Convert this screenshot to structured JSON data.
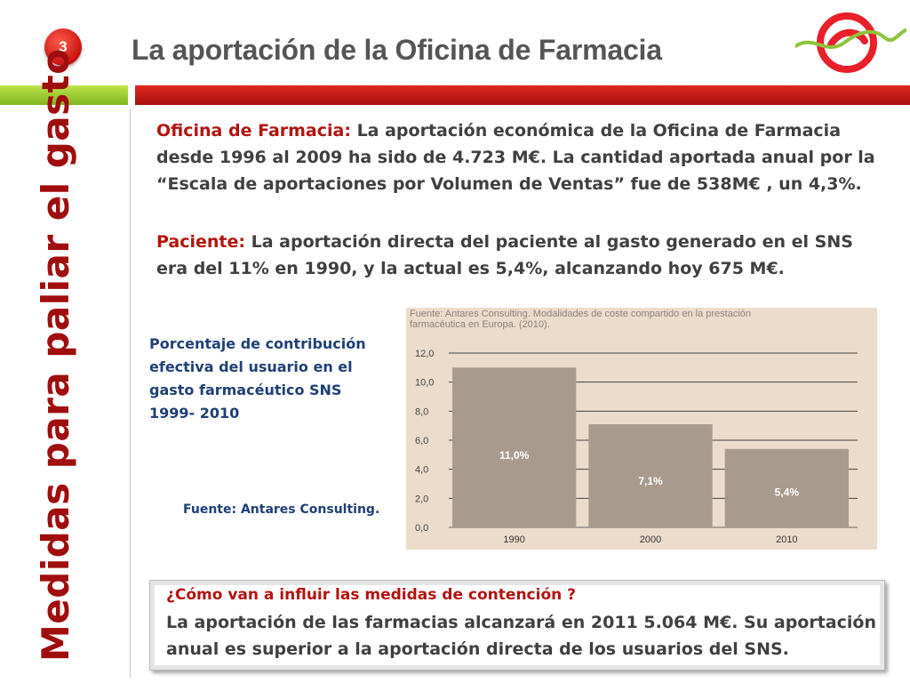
{
  "slide": {
    "number": "3",
    "title": "La aportación de la Oficina de Farmacia"
  },
  "sidebar": {
    "title": "Medidas para paliar el gasto"
  },
  "paragraphs": [
    {
      "label": "Oficina de Farmacia:",
      "text": " La aportación económica de la Oficina de Farmacia desde 1996 al 2009 ha sido de 4.723 M€.  La  cantidad aportada  anual por la “Escala de aportaciones por Volumen de Ventas” fue de 538M€ , un 4,3%."
    },
    {
      "label": "Paciente:",
      "text": " La aportación directa del paciente al gasto generado en el SNS  era del 11% en 1990, y la actual es 5,4%, alcanzando hoy 675 M€."
    }
  ],
  "caption": "Porcentaje de contribución efectiva del usuario en el gasto farmacéutico SNS 1999- 2010",
  "source": "Fuente: Antares Consulting.",
  "chart_data": {
    "type": "bar",
    "title": "Fuente: Antares Consulting. Modalidades de coste compartido en la prestación farmacéutica en Europa. (2010).",
    "categories": [
      "1990",
      "2000",
      "2010"
    ],
    "values": [
      11.0,
      7.1,
      5.4
    ],
    "data_labels": [
      "11,0%",
      "7,1%",
      "5,4%"
    ],
    "yticks": [
      "0,0",
      "2,0",
      "4,0",
      "6,0",
      "8,0",
      "10,0",
      "12,0"
    ],
    "ylim": [
      0,
      12
    ],
    "grid": true,
    "colors": {
      "bar": "#a89a8d",
      "background": "#ecdccb",
      "grid": "#444444"
    }
  },
  "bottom": {
    "question": "¿Cómo van a influir las medidas  de contención ?",
    "answer": "La aportación de las farmacias alcanzará en 2011  5.064 M€.  Su aportación anual es superior a la aportación directa  de los usuarios del SNS."
  }
}
